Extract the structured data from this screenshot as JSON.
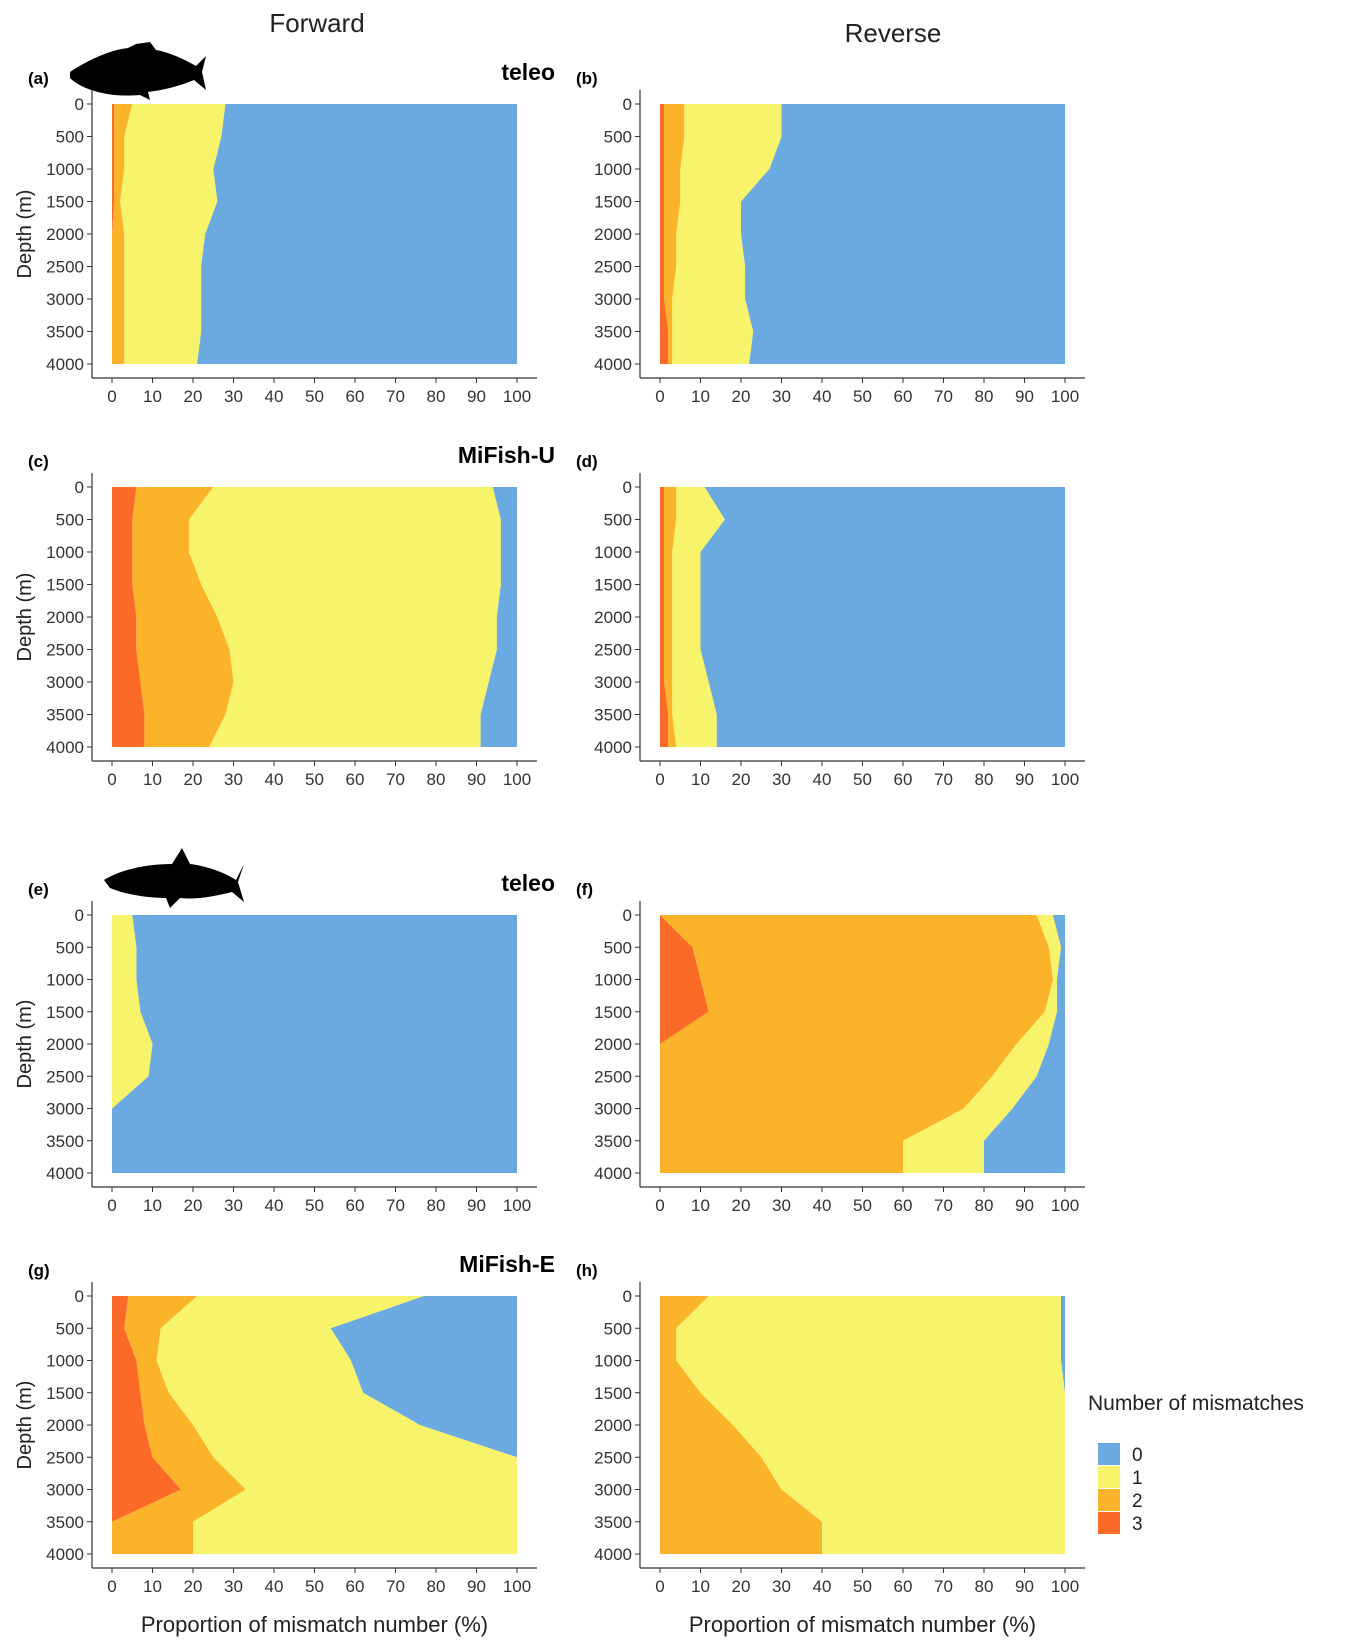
{
  "column_titles": [
    "Forward",
    "Reverse"
  ],
  "xlabel": "Proportion of mismatch number (%)",
  "ylabel": "Depth (m)",
  "x_ticks": [
    "0",
    "10",
    "20",
    "30",
    "40",
    "50",
    "60",
    "70",
    "80",
    "90",
    "100"
  ],
  "y_ticks": [
    "0",
    "500",
    "1000",
    "1500",
    "2000",
    "2500",
    "3000",
    "3500",
    "4000"
  ],
  "legend": {
    "title": "Number of mismatches",
    "entries": [
      {
        "label": "0",
        "color": "#6BAAE1"
      },
      {
        "label": "1",
        "color": "#F7F36A"
      },
      {
        "label": "2",
        "color": "#FBB32A"
      },
      {
        "label": "3",
        "color": "#FC6A28"
      }
    ]
  },
  "silhouettes": [
    {
      "icon": "fish-silhouette-icon",
      "row": 0
    },
    {
      "icon": "shark-silhouette-icon",
      "row": 2
    }
  ],
  "chart_data": [
    {
      "type": "area",
      "panel": "(a)",
      "primer": "teleo",
      "direction": "Forward",
      "xlim": [
        0,
        100
      ],
      "ylim": [
        0,
        4000
      ],
      "stacking": "cumulative percent by number of mismatches",
      "depth": [
        0,
        500,
        1000,
        1500,
        2000,
        2500,
        3000,
        3500,
        4000
      ],
      "boundaries": {
        "3": [
          0.5,
          0.5,
          0.5,
          0.5,
          0,
          0,
          0,
          0,
          0
        ],
        "3+2": [
          5,
          3,
          3,
          2,
          3,
          3,
          3,
          3,
          3
        ],
        "3+2+1": [
          28,
          27,
          25,
          26,
          23,
          22,
          22,
          22,
          21
        ]
      }
    },
    {
      "type": "area",
      "panel": "(b)",
      "primer": "",
      "direction": "Reverse",
      "xlim": [
        0,
        100
      ],
      "ylim": [
        0,
        4000
      ],
      "depth": [
        0,
        500,
        1000,
        1500,
        2000,
        2500,
        3000,
        3500,
        4000
      ],
      "boundaries": {
        "3": [
          1,
          1,
          1,
          1,
          1,
          1,
          1,
          2,
          2
        ],
        "3+2": [
          6,
          6,
          5,
          5,
          4,
          4,
          3,
          3,
          3
        ],
        "3+2+1": [
          30,
          30,
          27,
          20,
          20,
          21,
          21,
          23,
          22
        ]
      }
    },
    {
      "type": "area",
      "panel": "(c)",
      "primer": "MiFish-U",
      "direction": "Forward",
      "xlim": [
        0,
        100
      ],
      "ylim": [
        0,
        4000
      ],
      "depth": [
        0,
        500,
        1000,
        1500,
        2000,
        2500,
        3000,
        3500,
        4000
      ],
      "boundaries": {
        "3": [
          6,
          5,
          5,
          5,
          6,
          6,
          7,
          8,
          8
        ],
        "3+2": [
          25,
          19,
          19,
          22,
          26,
          29,
          30,
          28,
          24
        ],
        "3+2+1": [
          94,
          96,
          96,
          96,
          95,
          95,
          93,
          91,
          91
        ]
      }
    },
    {
      "type": "area",
      "panel": "(d)",
      "primer": "",
      "direction": "Reverse",
      "xlim": [
        0,
        100
      ],
      "ylim": [
        0,
        4000
      ],
      "depth": [
        0,
        500,
        1000,
        1500,
        2000,
        2500,
        3000,
        3500,
        4000
      ],
      "boundaries": {
        "3": [
          1,
          1,
          1,
          1,
          1,
          1,
          1,
          2,
          2
        ],
        "3+2": [
          4,
          4,
          3,
          3,
          3,
          3,
          3,
          3,
          4
        ],
        "3+2+1": [
          11,
          16,
          10,
          10,
          10,
          10,
          12,
          14,
          14
        ]
      }
    },
    {
      "type": "area",
      "panel": "(e)",
      "primer": "teleo",
      "direction": "Forward",
      "xlim": [
        0,
        100
      ],
      "ylim": [
        0,
        4000
      ],
      "depth": [
        0,
        500,
        1000,
        1500,
        2000,
        2500,
        3000,
        3500,
        4000
      ],
      "boundaries": {
        "3": [
          0,
          0,
          0,
          0,
          0,
          0,
          0,
          0,
          0
        ],
        "3+2": [
          0,
          0,
          0,
          0,
          0,
          0,
          0,
          0,
          0
        ],
        "3+2+1": [
          5,
          6,
          6,
          7,
          10,
          9,
          0,
          0,
          0
        ]
      }
    },
    {
      "type": "area",
      "panel": "(f)",
      "primer": "",
      "direction": "Reverse",
      "xlim": [
        0,
        100
      ],
      "ylim": [
        0,
        4000
      ],
      "depth": [
        0,
        500,
        1000,
        1500,
        2000,
        2500,
        3000,
        3500,
        4000
      ],
      "boundaries": {
        "3": [
          0,
          8,
          10,
          12,
          0,
          0,
          0,
          0,
          0
        ],
        "3+2": [
          93,
          96,
          97,
          95,
          88,
          82,
          75,
          60,
          60
        ],
        "3+2+1": [
          97,
          99,
          98,
          98,
          96,
          93,
          87,
          80,
          80
        ]
      }
    },
    {
      "type": "area",
      "panel": "(g)",
      "primer": "MiFish-E",
      "direction": "Forward",
      "xlim": [
        0,
        100
      ],
      "ylim": [
        0,
        4000
      ],
      "depth": [
        0,
        500,
        1000,
        1500,
        2000,
        2500,
        3000,
        3500,
        4000
      ],
      "boundaries": {
        "3": [
          4,
          3,
          6,
          7,
          8,
          10,
          17,
          0,
          0
        ],
        "3+2": [
          21,
          12,
          11,
          14,
          20,
          25,
          33,
          20,
          20
        ],
        "3+2+1": [
          77,
          54,
          59,
          62,
          76,
          100,
          100,
          100,
          100
        ]
      }
    },
    {
      "type": "area",
      "panel": "(h)",
      "primer": "",
      "direction": "Reverse",
      "xlim": [
        0,
        100
      ],
      "ylim": [
        0,
        4000
      ],
      "depth": [
        0,
        500,
        1000,
        1500,
        2000,
        2500,
        3000,
        3500,
        4000
      ],
      "boundaries": {
        "3": [
          0,
          0,
          0,
          0,
          0,
          0,
          0,
          0,
          0
        ],
        "3+2": [
          12,
          4,
          4,
          10,
          18,
          25,
          30,
          40,
          40
        ],
        "3+2+1": [
          99,
          99,
          99,
          100,
          100,
          100,
          100,
          100,
          100
        ]
      }
    }
  ]
}
